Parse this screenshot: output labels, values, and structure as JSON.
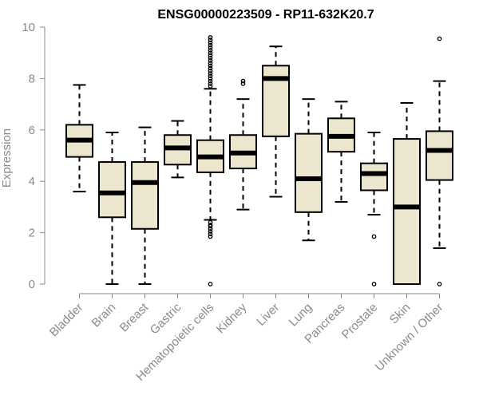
{
  "chart_data": {
    "type": "boxplot",
    "title": "ENSG00000223509 - RP11-632K20.7",
    "xlabel": "",
    "ylabel": "Expression",
    "ylim": [
      0,
      10
    ],
    "yticks": [
      0,
      2,
      4,
      6,
      8,
      10
    ],
    "grid": false,
    "box_fill": "#ede6ce",
    "stroke_color": "#000000",
    "axis_color": "#8a8a8a",
    "categories": [
      "Bladder",
      "Brain",
      "Breast",
      "Gastric",
      "Hematopoietic cells",
      "Kidney",
      "Liver",
      "Lung",
      "Pancreas",
      "Prostate",
      "Skin",
      "Unknown / Other"
    ],
    "boxes": [
      {
        "q1": 4.95,
        "median": 5.6,
        "q3": 6.2,
        "whisker_low": 3.6,
        "whisker_high": 7.75,
        "outliers": []
      },
      {
        "q1": 2.6,
        "median": 3.55,
        "q3": 4.75,
        "whisker_low": 0.0,
        "whisker_high": 5.9,
        "outliers": []
      },
      {
        "q1": 2.15,
        "median": 3.95,
        "q3": 4.75,
        "whisker_low": 0.0,
        "whisker_high": 6.1,
        "outliers": []
      },
      {
        "q1": 4.65,
        "median": 5.3,
        "q3": 5.8,
        "whisker_low": 4.15,
        "whisker_high": 6.35,
        "outliers": []
      },
      {
        "q1": 4.35,
        "median": 4.95,
        "q3": 5.6,
        "whisker_low": 2.5,
        "whisker_high": 7.6,
        "outliers": [
          0.0,
          1.85,
          1.95,
          2.05,
          2.15,
          2.25,
          2.3,
          2.4,
          7.7,
          7.8,
          7.9,
          8.0,
          8.1,
          8.2,
          8.3,
          8.4,
          8.5,
          8.6,
          8.7,
          8.8,
          8.9,
          9.0,
          9.1,
          9.2,
          9.3,
          9.4,
          9.5,
          9.6
        ]
      },
      {
        "q1": 4.5,
        "median": 5.1,
        "q3": 5.8,
        "whisker_low": 2.9,
        "whisker_high": 7.2,
        "outliers": [
          7.8,
          7.9
        ]
      },
      {
        "q1": 5.75,
        "median": 8.0,
        "q3": 8.5,
        "whisker_low": 3.4,
        "whisker_high": 9.25,
        "outliers": []
      },
      {
        "q1": 2.8,
        "median": 4.1,
        "q3": 5.85,
        "whisker_low": 1.7,
        "whisker_high": 7.2,
        "outliers": []
      },
      {
        "q1": 5.15,
        "median": 5.75,
        "q3": 6.45,
        "whisker_low": 3.2,
        "whisker_high": 7.1,
        "outliers": []
      },
      {
        "q1": 3.65,
        "median": 4.3,
        "q3": 4.7,
        "whisker_low": 2.7,
        "whisker_high": 5.9,
        "outliers": [
          1.85,
          0.0
        ]
      },
      {
        "q1": 0.0,
        "median": 3.0,
        "q3": 5.65,
        "whisker_low": 0.0,
        "whisker_high": 7.05,
        "outliers": []
      },
      {
        "q1": 4.05,
        "median": 5.2,
        "q3": 5.95,
        "whisker_low": 1.4,
        "whisker_high": 7.9,
        "outliers": [
          0.0,
          9.55
        ]
      }
    ]
  }
}
